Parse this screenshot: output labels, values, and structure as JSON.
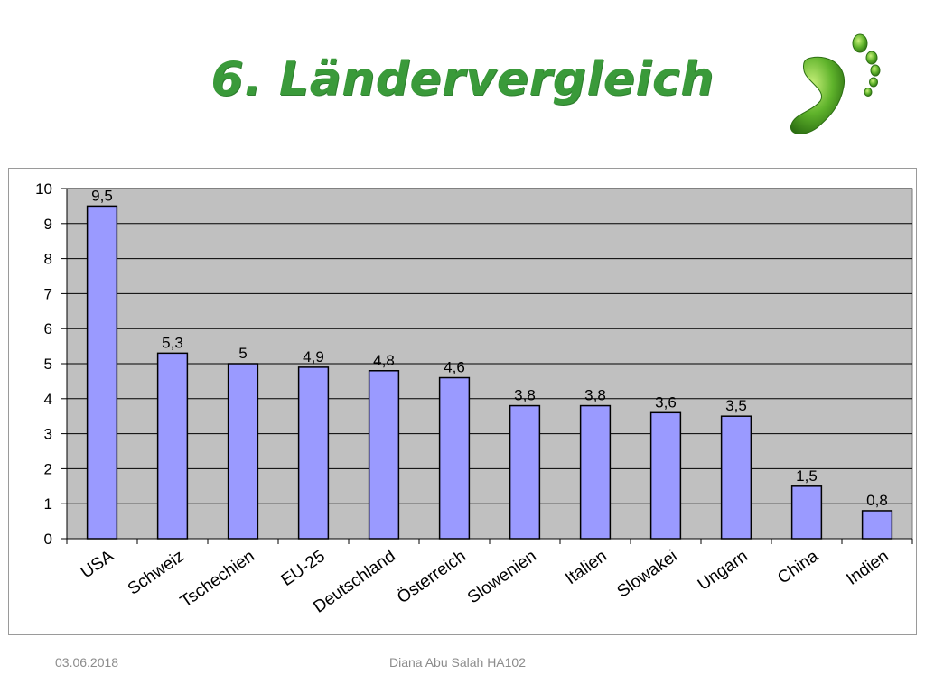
{
  "slide": {
    "title": "6. Ländervergleich",
    "logo_icon": "footprint-icon",
    "accent_color": "#3a9a3a"
  },
  "footer": {
    "date": "03.06.2018",
    "author": "Diana Abu Salah HA102"
  },
  "chart_data": {
    "type": "bar",
    "categories": [
      "USA",
      "Schweiz",
      "Tschechien",
      "EU-25",
      "Deutschland",
      "Österreich",
      "Slowenien",
      "Italien",
      "Slowakei",
      "Ungarn",
      "China",
      "Indien"
    ],
    "values": [
      9.5,
      5.3,
      5,
      4.9,
      4.8,
      4.6,
      3.8,
      3.8,
      3.6,
      3.5,
      1.5,
      0.8
    ],
    "data_labels": [
      "9,5",
      "5,3",
      "5",
      "4,9",
      "4,8",
      "4,6",
      "3,8",
      "3,8",
      "3,6",
      "3,5",
      "1,5",
      "0,8"
    ],
    "y_ticks": [
      0,
      1,
      2,
      3,
      4,
      5,
      6,
      7,
      8,
      9,
      10
    ],
    "ylim": [
      0,
      10
    ],
    "grid": true,
    "legend": "none",
    "bar_color": "#9a9aff",
    "plot_background": "#c0c0c0"
  }
}
